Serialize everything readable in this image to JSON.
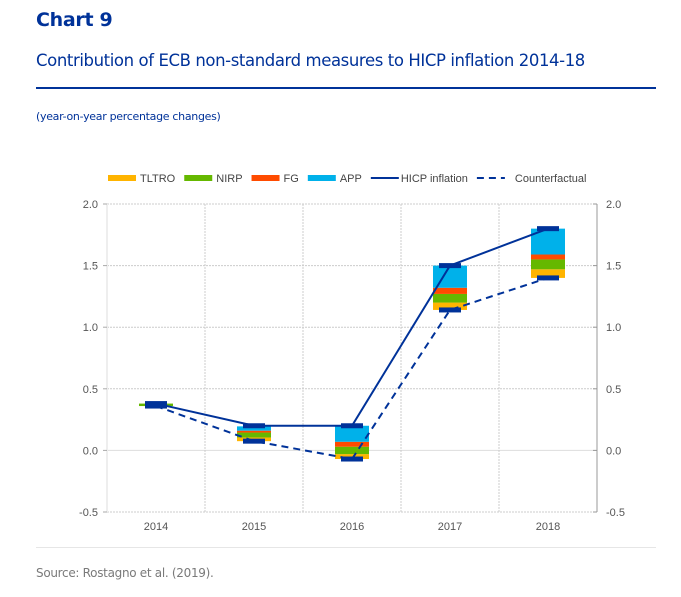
{
  "header": {
    "chart_label": "Chart 9",
    "title": "Contribution of ECB non-standard measures to HICP inflation 2014-18",
    "subtitle": "(year-on-year percentage changes)"
  },
  "footer": {
    "source": "Source: Rostagno et al. (2019)."
  },
  "colors": {
    "TLTRO": "#ffb400",
    "NIRP": "#65b800",
    "FG": "#ff4b00",
    "APP": "#00b1ea",
    "HICP inflation": "#003299",
    "Counterfactual": "#003299",
    "title": "#003299",
    "grid": "#d0d0d0"
  },
  "chart_data": {
    "type": "bar",
    "subtype": "stacked bar with lines",
    "title": "Contribution of ECB non-standard measures to HICP inflation 2014-18",
    "subtitle": "(year-on-year percentage changes)",
    "xlabel": "",
    "ylabel": "",
    "categories": [
      "2014",
      "2015",
      "2016",
      "2017",
      "2018"
    ],
    "ylim": [
      -0.5,
      2.0
    ],
    "yticks": [
      "2.0",
      "1.5",
      "1.0",
      "0.5",
      "0.0",
      "-0.5"
    ],
    "ytick_values": [
      2.0,
      1.5,
      1.0,
      0.5,
      0.0,
      -0.5
    ],
    "secondary_y_axis": true,
    "grid": true,
    "legend_position": "top",
    "stack_base": "Counterfactual",
    "series": [
      {
        "name": "TLTRO",
        "kind": "bar",
        "values": [
          0.0,
          0.03,
          0.04,
          0.06,
          0.07
        ]
      },
      {
        "name": "NIRP",
        "kind": "bar",
        "values": [
          0.02,
          0.04,
          0.06,
          0.07,
          0.08
        ]
      },
      {
        "name": "FG",
        "kind": "bar",
        "values": [
          0.0,
          0.015,
          0.04,
          0.05,
          0.04
        ]
      },
      {
        "name": "APP",
        "kind": "bar",
        "values": [
          0.0,
          0.035,
          0.13,
          0.18,
          0.21
        ]
      },
      {
        "name": "HICP inflation",
        "kind": "line",
        "style": "solid",
        "values": [
          0.38,
          0.2,
          0.2,
          1.5,
          1.8
        ]
      },
      {
        "name": "Counterfactual",
        "kind": "line",
        "style": "dashed",
        "values": [
          0.36,
          0.075,
          -0.07,
          1.14,
          1.4
        ]
      }
    ],
    "legend": [
      "TLTRO",
      "NIRP",
      "FG",
      "APP",
      "HICP inflation",
      "Counterfactual"
    ]
  }
}
